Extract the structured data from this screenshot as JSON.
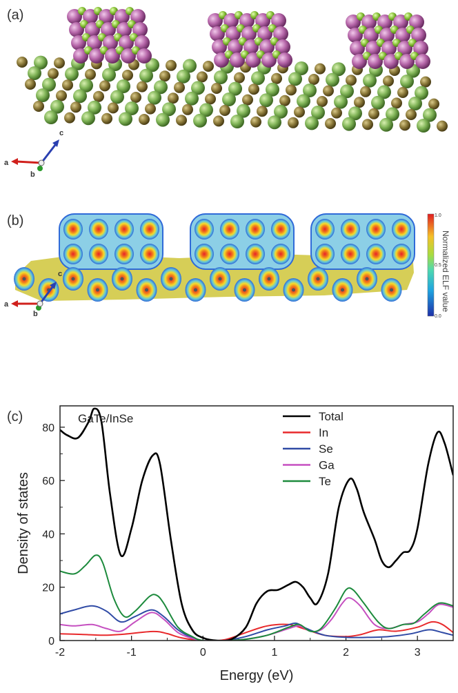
{
  "panels": {
    "a": {
      "label": "(a)",
      "axes": {
        "a": "a",
        "b": "b",
        "c": "c"
      }
    },
    "b": {
      "label": "(b)",
      "axes": {
        "a": "a",
        "b": "b",
        "c": "c"
      },
      "colorbar": {
        "label": "Normalized ELF value",
        "max_label": "1.0",
        "mid_label": "0.5",
        "min_label": "0.0"
      }
    },
    "c": {
      "label": "(c)"
    }
  },
  "colors": {
    "Total": "#000000",
    "In": "#e8292b",
    "Se": "#2f4aa5",
    "Ga": "#c54fc0",
    "Te": "#1c8a3c",
    "green_atom": "#7fb356",
    "olive_atom": "#8c7a3a",
    "pink_atom": "#b565a8",
    "lime_atom": "#8cc43c"
  },
  "chart_data": {
    "type": "line",
    "annotation": "GaTe/InSe",
    "xlabel": "Energy (eV)",
    "ylabel": "Density of states",
    "xlim": [
      -2,
      3.5
    ],
    "ylim": [
      0,
      88
    ],
    "xticks": [
      "-2",
      "-1",
      "0",
      "1",
      "2",
      "3"
    ],
    "yticks": [
      "0",
      "20",
      "40",
      "60",
      "80"
    ],
    "legend_position": "top-right",
    "series": [
      {
        "name": "Total",
        "points": [
          [
            -2,
            79
          ],
          [
            -1.9,
            77
          ],
          [
            -1.75,
            76
          ],
          [
            -1.6,
            82
          ],
          [
            -1.52,
            87
          ],
          [
            -1.42,
            82
          ],
          [
            -1.3,
            55
          ],
          [
            -1.15,
            32
          ],
          [
            -1.0,
            42
          ],
          [
            -0.85,
            60
          ],
          [
            -0.7,
            69.5
          ],
          [
            -0.6,
            66
          ],
          [
            -0.45,
            38
          ],
          [
            -0.3,
            14
          ],
          [
            -0.15,
            4
          ],
          [
            0,
            1
          ],
          [
            0.2,
            0
          ],
          [
            0.4,
            0.5
          ],
          [
            0.6,
            5
          ],
          [
            0.75,
            14
          ],
          [
            0.9,
            18.5
          ],
          [
            1.05,
            19
          ],
          [
            1.2,
            21
          ],
          [
            1.3,
            22
          ],
          [
            1.4,
            20
          ],
          [
            1.5,
            16
          ],
          [
            1.6,
            14
          ],
          [
            1.75,
            25
          ],
          [
            1.9,
            50
          ],
          [
            2.05,
            60.5
          ],
          [
            2.15,
            57
          ],
          [
            2.25,
            48
          ],
          [
            2.4,
            38
          ],
          [
            2.5,
            30
          ],
          [
            2.6,
            27.5
          ],
          [
            2.7,
            30
          ],
          [
            2.8,
            33
          ],
          [
            2.9,
            34
          ],
          [
            3.0,
            42
          ],
          [
            3.15,
            66
          ],
          [
            3.28,
            78
          ],
          [
            3.38,
            74
          ],
          [
            3.5,
            62
          ]
        ]
      },
      {
        "name": "In",
        "points": [
          [
            -2,
            2.5
          ],
          [
            -1.7,
            2.3
          ],
          [
            -1.4,
            2.0
          ],
          [
            -1.1,
            2.4
          ],
          [
            -0.7,
            3.4
          ],
          [
            -0.5,
            2.6
          ],
          [
            -0.3,
            1.0
          ],
          [
            0,
            0
          ],
          [
            0.3,
            0.3
          ],
          [
            0.6,
            3
          ],
          [
            0.9,
            5.5
          ],
          [
            1.2,
            6
          ],
          [
            1.4,
            4.5
          ],
          [
            1.7,
            2
          ],
          [
            2.0,
            1.5
          ],
          [
            2.2,
            2.2
          ],
          [
            2.45,
            4
          ],
          [
            2.7,
            3.5
          ],
          [
            3.0,
            5
          ],
          [
            3.2,
            7
          ],
          [
            3.35,
            6
          ],
          [
            3.5,
            3
          ]
        ]
      },
      {
        "name": "Se",
        "points": [
          [
            -2,
            10
          ],
          [
            -1.8,
            11.5
          ],
          [
            -1.55,
            13
          ],
          [
            -1.35,
            11
          ],
          [
            -1.15,
            7
          ],
          [
            -0.95,
            9
          ],
          [
            -0.72,
            11.5
          ],
          [
            -0.55,
            9
          ],
          [
            -0.35,
            4
          ],
          [
            -0.15,
            1
          ],
          [
            0,
            0
          ],
          [
            0.3,
            0
          ],
          [
            0.6,
            1.5
          ],
          [
            0.9,
            4
          ],
          [
            1.15,
            5.5
          ],
          [
            1.3,
            6.5
          ],
          [
            1.45,
            4.5
          ],
          [
            1.7,
            2
          ],
          [
            2.0,
            1.2
          ],
          [
            2.3,
            1.2
          ],
          [
            2.6,
            1.5
          ],
          [
            2.9,
            2.5
          ],
          [
            3.1,
            3.8
          ],
          [
            3.2,
            4
          ],
          [
            3.35,
            3
          ],
          [
            3.5,
            2
          ]
        ]
      },
      {
        "name": "Ga",
        "points": [
          [
            -2,
            6
          ],
          [
            -1.8,
            5.5
          ],
          [
            -1.55,
            6
          ],
          [
            -1.35,
            4.5
          ],
          [
            -1.15,
            3.5
          ],
          [
            -0.95,
            7
          ],
          [
            -0.72,
            10.5
          ],
          [
            -0.55,
            8
          ],
          [
            -0.35,
            3
          ],
          [
            -0.15,
            0.8
          ],
          [
            0,
            0
          ],
          [
            0.3,
            0
          ],
          [
            0.6,
            0.5
          ],
          [
            0.9,
            2
          ],
          [
            1.2,
            4.5
          ],
          [
            1.35,
            5.5
          ],
          [
            1.5,
            3.5
          ],
          [
            1.65,
            4
          ],
          [
            1.8,
            8
          ],
          [
            1.95,
            14
          ],
          [
            2.05,
            16
          ],
          [
            2.2,
            13
          ],
          [
            2.4,
            6
          ],
          [
            2.6,
            4.5
          ],
          [
            2.8,
            6
          ],
          [
            3.0,
            7
          ],
          [
            3.15,
            10
          ],
          [
            3.3,
            13.5
          ],
          [
            3.5,
            12.5
          ]
        ]
      },
      {
        "name": "Te",
        "points": [
          [
            -2,
            26
          ],
          [
            -1.8,
            25
          ],
          [
            -1.65,
            28
          ],
          [
            -1.5,
            32
          ],
          [
            -1.4,
            29
          ],
          [
            -1.25,
            16
          ],
          [
            -1.1,
            9
          ],
          [
            -0.95,
            11
          ],
          [
            -0.75,
            16.5
          ],
          [
            -0.65,
            17
          ],
          [
            -0.55,
            14
          ],
          [
            -0.35,
            5
          ],
          [
            -0.15,
            1.5
          ],
          [
            0,
            0
          ],
          [
            0.3,
            0
          ],
          [
            0.6,
            0.5
          ],
          [
            0.9,
            2
          ],
          [
            1.2,
            5
          ],
          [
            1.35,
            6
          ],
          [
            1.5,
            3.5
          ],
          [
            1.65,
            4.5
          ],
          [
            1.85,
            12
          ],
          [
            2.0,
            19
          ],
          [
            2.1,
            19
          ],
          [
            2.25,
            14
          ],
          [
            2.45,
            7
          ],
          [
            2.6,
            4.5
          ],
          [
            2.8,
            6
          ],
          [
            2.95,
            6.5
          ],
          [
            3.1,
            10
          ],
          [
            3.3,
            14
          ],
          [
            3.5,
            13
          ]
        ]
      }
    ]
  }
}
